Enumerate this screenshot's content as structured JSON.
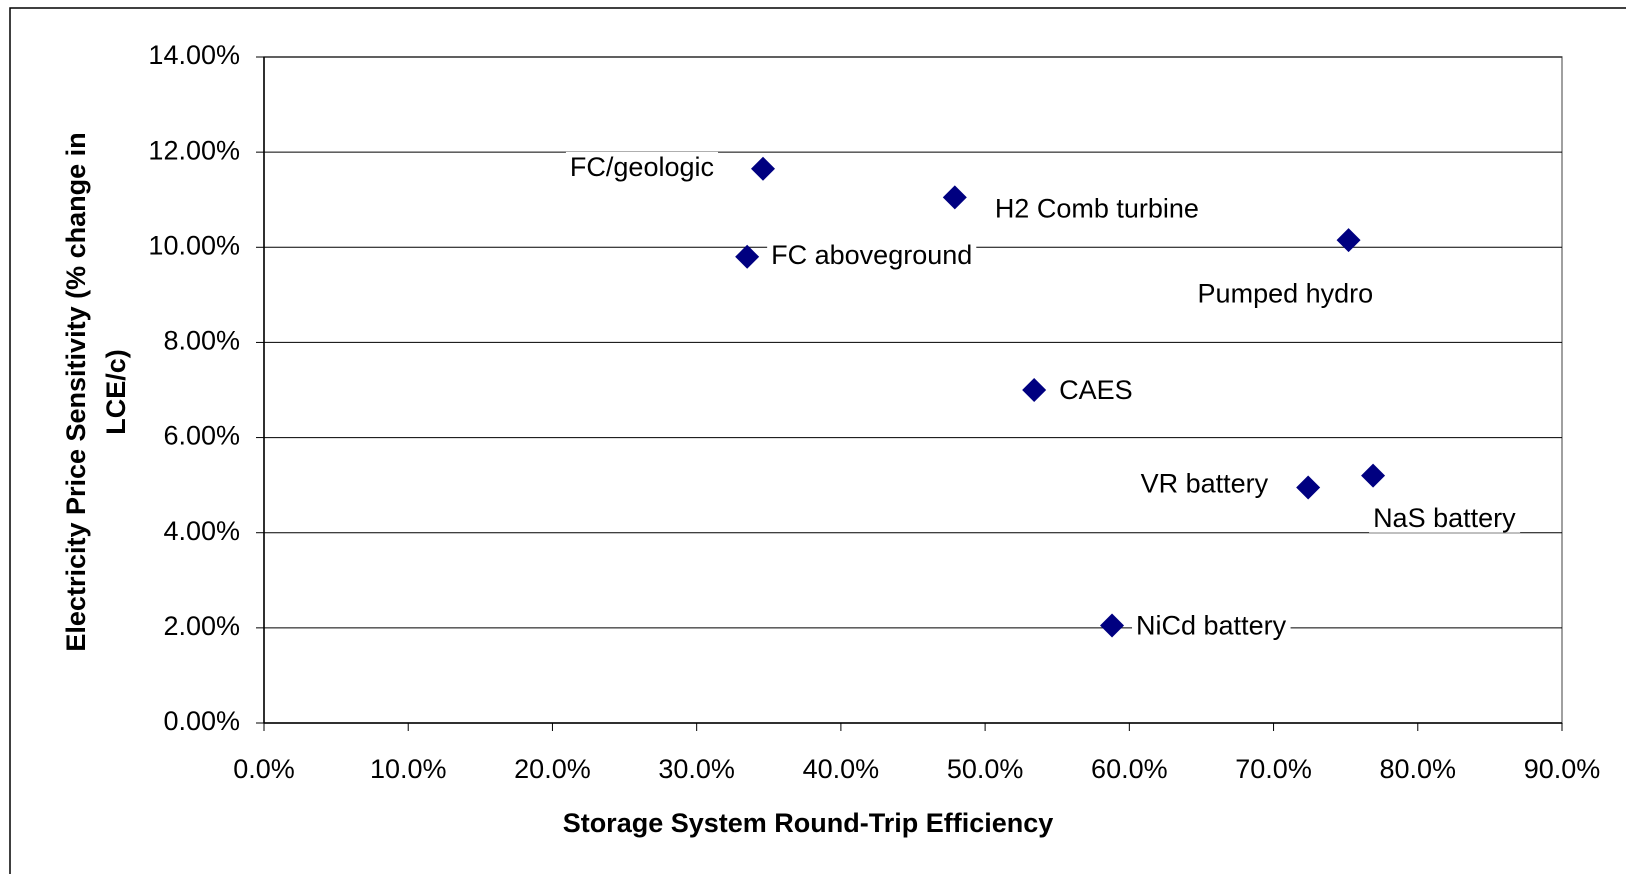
{
  "chart_data": {
    "type": "scatter",
    "xlabel": "Storage System Round-Trip Efficiency",
    "ylabel": [
      "Electricity Price Sensitivity (% change in",
      "LCE/c)"
    ],
    "labels": [
      "FC/geologic",
      "H2 Comb turbine",
      "FC aboveground",
      "Pumped hydro",
      "CAES",
      "VR battery",
      "NaS battery",
      "NiCd battery"
    ],
    "x": [
      34.6,
      47.9,
      33.5,
      75.2,
      53.4,
      72.4,
      76.9,
      58.8
    ],
    "values": [
      11.65,
      11.05,
      9.8,
      10.15,
      7.0,
      4.95,
      5.2,
      2.05
    ],
    "color": "#000080",
    "xlim": [
      0,
      90
    ],
    "xticks": [
      {
        "value": 0,
        "label": "0.0%"
      },
      {
        "value": 10,
        "label": "10.0%"
      },
      {
        "value": 20,
        "label": "20.0%"
      },
      {
        "value": 30,
        "label": "30.0%"
      },
      {
        "value": 40,
        "label": "40.0%"
      },
      {
        "value": 50,
        "label": "50.0%"
      },
      {
        "value": 60,
        "label": "60.0%"
      },
      {
        "value": 70,
        "label": "70.0%"
      },
      {
        "value": 80,
        "label": "80.0%"
      },
      {
        "value": 90,
        "label": "90.0%"
      }
    ],
    "ylim": [
      0,
      14
    ],
    "yticks": [
      {
        "value": 0,
        "label": "0.00%"
      },
      {
        "value": 2,
        "label": "2.00%"
      },
      {
        "value": 4,
        "label": "4.00%"
      },
      {
        "value": 6,
        "label": "6.00%"
      },
      {
        "value": 8,
        "label": "8.00%"
      },
      {
        "value": 10,
        "label": "10.00%"
      },
      {
        "value": 12,
        "label": "12.00%"
      },
      {
        "value": 14,
        "label": "14.00%"
      }
    ],
    "grid": true
  }
}
